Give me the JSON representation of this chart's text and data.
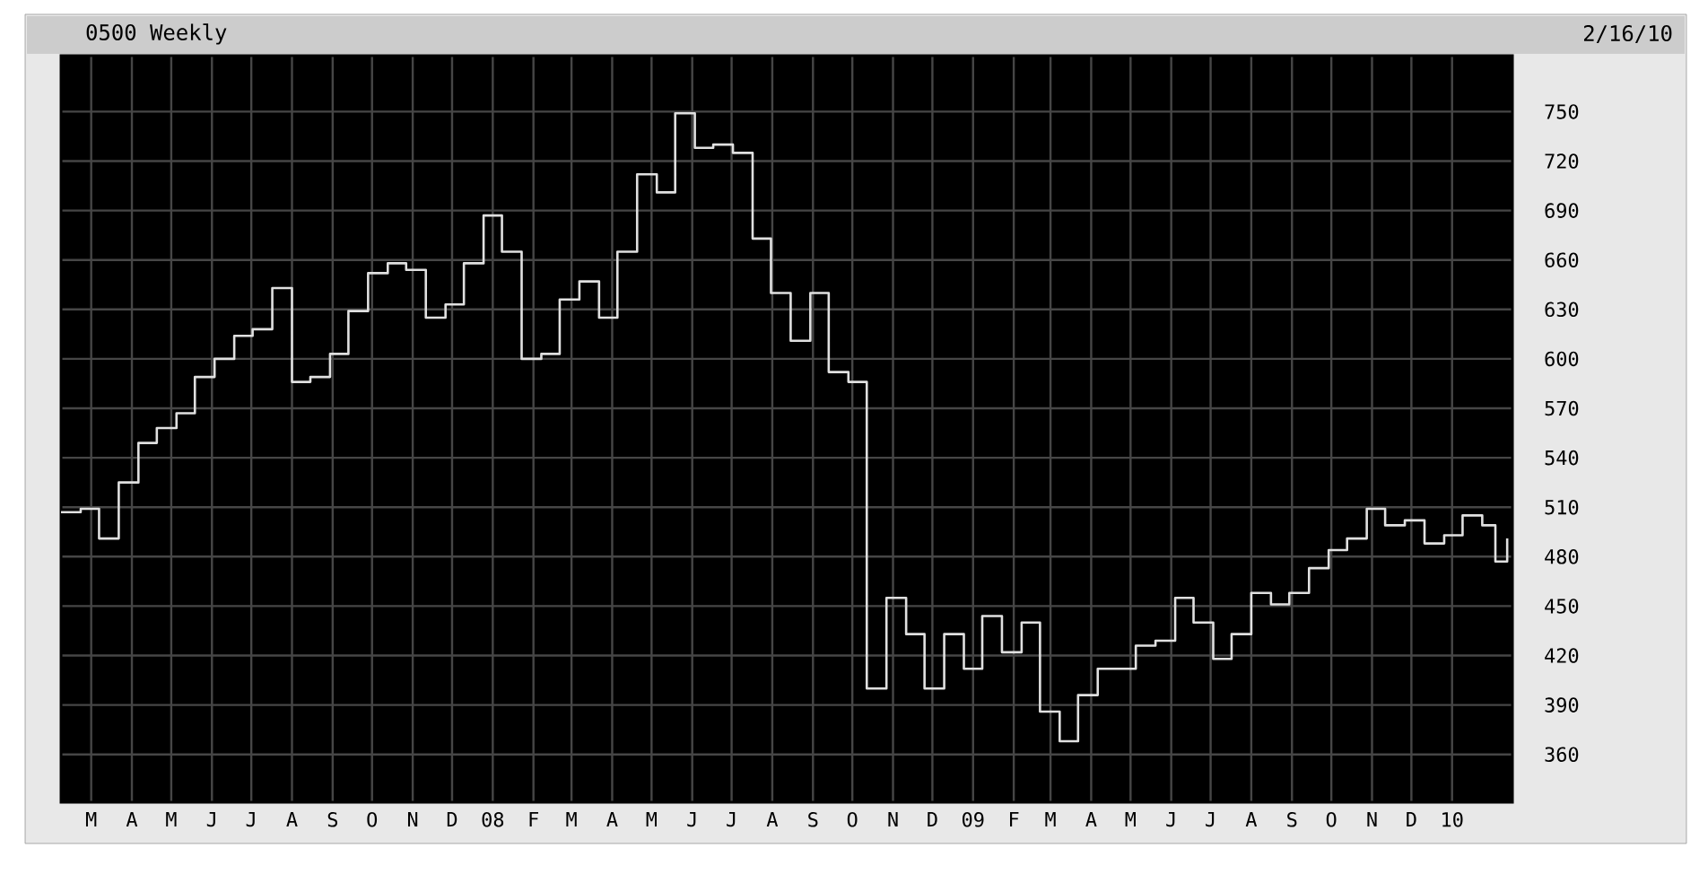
{
  "chart_data": {
    "type": "step",
    "title": "0500 Weekly",
    "annotations": [
      "2/16/10"
    ],
    "x": [
      "2007-02-06",
      "2007-02-21",
      "2007-03-07",
      "2007-03-22",
      "2007-04-06",
      "2007-04-20",
      "2007-05-05",
      "2007-05-19",
      "2007-06-03",
      "2007-06-18",
      "2007-07-02",
      "2007-07-17",
      "2007-08-01",
      "2007-08-15",
      "2007-08-30",
      "2007-09-13",
      "2007-09-28",
      "2007-10-13",
      "2007-10-27",
      "2007-11-11",
      "2007-11-26",
      "2007-12-10",
      "2007-12-25",
      "2008-01-08",
      "2008-01-23",
      "2008-02-07",
      "2008-02-21",
      "2008-03-07",
      "2008-03-22",
      "2008-04-05",
      "2008-04-20",
      "2008-05-05",
      "2008-05-19",
      "2008-06-03",
      "2008-06-17",
      "2008-07-02",
      "2008-07-17",
      "2008-07-31",
      "2008-08-15",
      "2008-08-30",
      "2008-09-13",
      "2008-09-28",
      "2008-10-12",
      "2008-10-27",
      "2008-11-11",
      "2008-11-25",
      "2008-12-10",
      "2008-12-25",
      "2009-01-08",
      "2009-01-23",
      "2009-02-07",
      "2009-02-21",
      "2009-03-08",
      "2009-03-22",
      "2009-04-06",
      "2009-04-21",
      "2009-05-05",
      "2009-05-20",
      "2009-06-04",
      "2009-06-18",
      "2009-07-03",
      "2009-07-17",
      "2009-08-01",
      "2009-08-16",
      "2009-08-30",
      "2009-09-14",
      "2009-09-29",
      "2009-10-13",
      "2009-10-28",
      "2009-11-11",
      "2009-11-26",
      "2009-12-11",
      "2009-12-26",
      "2010-01-09",
      "2010-01-24",
      "2010-02-03",
      "2010-02-12"
    ],
    "series": [
      {
        "color": "#e0e0e0",
        "values": [
          507,
          509,
          491,
          525,
          549,
          558,
          567,
          589,
          600,
          614,
          618,
          643,
          586,
          589,
          603,
          629,
          652,
          658,
          654,
          625,
          633,
          658,
          687,
          665,
          600,
          603,
          636,
          647,
          625,
          665,
          712,
          701,
          749,
          728,
          730,
          725,
          673,
          640,
          611,
          640,
          592,
          586,
          400,
          455,
          433,
          400,
          433,
          412,
          444,
          422,
          440,
          386,
          368,
          396,
          412,
          412,
          426,
          429,
          455,
          440,
          418,
          433,
          458,
          451,
          458,
          473,
          484,
          491,
          509,
          499,
          502,
          488,
          493,
          505,
          499,
          477,
          491
        ]
      }
    ],
    "xlim": [
      "2007-02-06",
      "2010-02-16"
    ],
    "ylim": [
      331,
      784
    ],
    "xticks": [
      {
        "value": "2007-03-01",
        "label": "M"
      },
      {
        "value": "2007-04-01",
        "label": "A"
      },
      {
        "value": "2007-05-01",
        "label": "M"
      },
      {
        "value": "2007-06-01",
        "label": "J"
      },
      {
        "value": "2007-07-01",
        "label": "J"
      },
      {
        "value": "2007-08-01",
        "label": "A"
      },
      {
        "value": "2007-09-01",
        "label": "S"
      },
      {
        "value": "2007-10-01",
        "label": "O"
      },
      {
        "value": "2007-11-01",
        "label": "N"
      },
      {
        "value": "2007-12-01",
        "label": "D"
      },
      {
        "value": "2008-01-01",
        "label": "08"
      },
      {
        "value": "2008-02-01",
        "label": "F"
      },
      {
        "value": "2008-03-01",
        "label": "M"
      },
      {
        "value": "2008-04-01",
        "label": "A"
      },
      {
        "value": "2008-05-01",
        "label": "M"
      },
      {
        "value": "2008-06-01",
        "label": "J"
      },
      {
        "value": "2008-07-01",
        "label": "J"
      },
      {
        "value": "2008-08-01",
        "label": "A"
      },
      {
        "value": "2008-09-01",
        "label": "S"
      },
      {
        "value": "2008-10-01",
        "label": "O"
      },
      {
        "value": "2008-11-01",
        "label": "N"
      },
      {
        "value": "2008-12-01",
        "label": "D"
      },
      {
        "value": "2009-01-01",
        "label": "09"
      },
      {
        "value": "2009-02-01",
        "label": "F"
      },
      {
        "value": "2009-03-01",
        "label": "M"
      },
      {
        "value": "2009-04-01",
        "label": "A"
      },
      {
        "value": "2009-05-01",
        "label": "M"
      },
      {
        "value": "2009-06-01",
        "label": "J"
      },
      {
        "value": "2009-07-01",
        "label": "J"
      },
      {
        "value": "2009-08-01",
        "label": "A"
      },
      {
        "value": "2009-09-01",
        "label": "S"
      },
      {
        "value": "2009-10-01",
        "label": "O"
      },
      {
        "value": "2009-11-01",
        "label": "N"
      },
      {
        "value": "2009-12-01",
        "label": "D"
      },
      {
        "value": "2010-01-01",
        "label": "10"
      }
    ],
    "yticks": [
      360,
      390,
      420,
      450,
      480,
      510,
      540,
      570,
      600,
      630,
      660,
      690,
      720,
      750
    ],
    "grid": true,
    "marker": "none",
    "line_style": "solid"
  }
}
